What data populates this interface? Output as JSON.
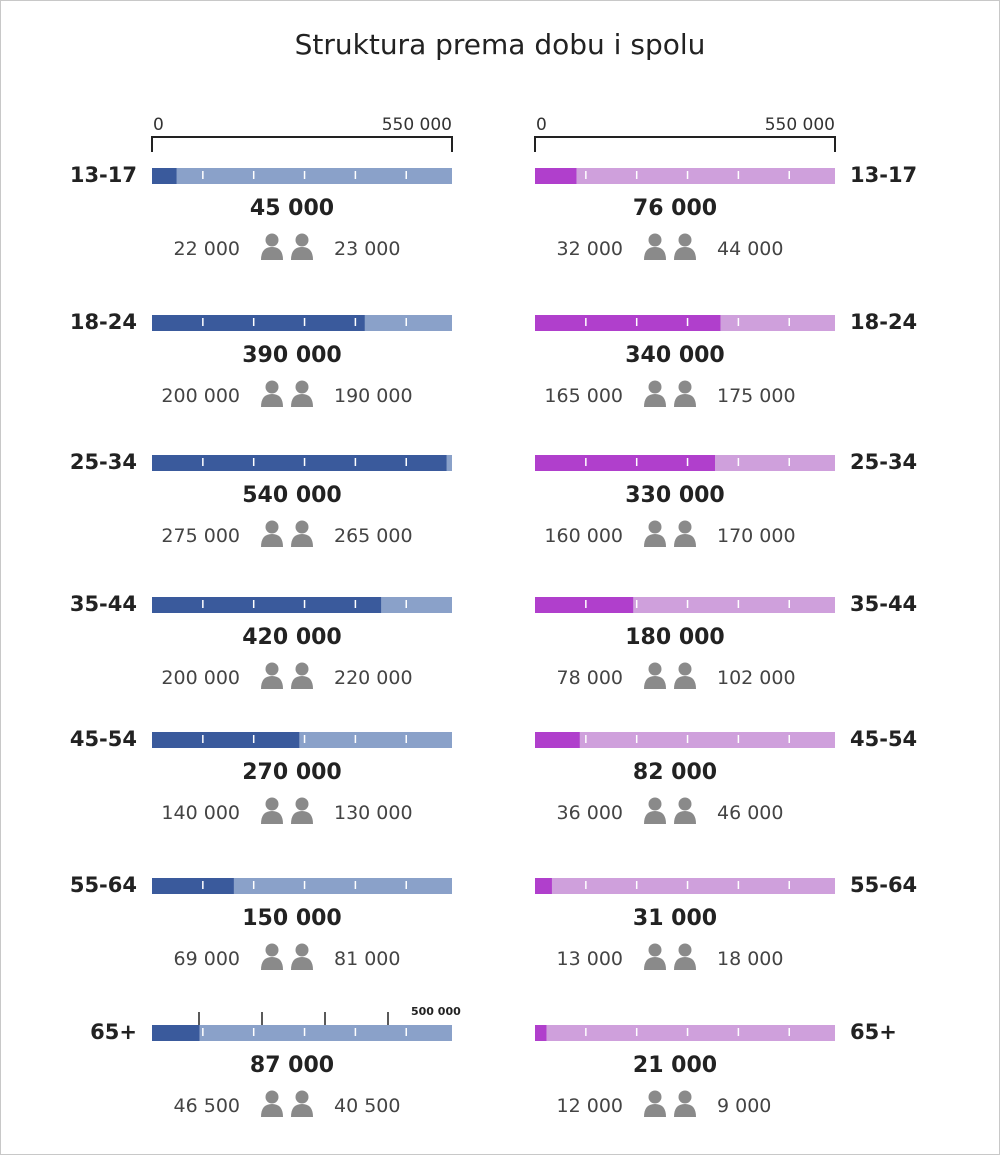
{
  "chart_data": {
    "type": "bar",
    "title": "Struktura prema dobu i spolu",
    "axis": {
      "min_label": "0",
      "max_label": "550 000",
      "max": 550000
    },
    "colors": {
      "left_fill": "#3a5a9c",
      "left_track": "#8aa1c9",
      "right_fill": "#b03fcc",
      "right_track": "#cfa0dc",
      "icon": "#8a8a8a"
    },
    "icons": {
      "gender": "person-pair-icon"
    },
    "left": [
      {
        "age": "13-17",
        "total": 45000,
        "total_label": "45 000",
        "female_label": "22 000",
        "male_label": "23 000"
      },
      {
        "age": "18-24",
        "total": 390000,
        "total_label": "390 000",
        "female_label": "200 000",
        "male_label": "190 000"
      },
      {
        "age": "25-34",
        "total": 540000,
        "total_label": "540 000",
        "female_label": "275 000",
        "male_label": "265 000"
      },
      {
        "age": "35-44",
        "total": 420000,
        "total_label": "420 000",
        "female_label": "200 000",
        "male_label": "220 000"
      },
      {
        "age": "45-54",
        "total": 270000,
        "total_label": "270 000",
        "female_label": "140 000",
        "male_label": "130 000"
      },
      {
        "age": "55-64",
        "total": 150000,
        "total_label": "150 000",
        "female_label": "69 000",
        "male_label": "81 000"
      },
      {
        "age": "65+",
        "total": 87000,
        "total_label": "87 000",
        "female_label": "46 500",
        "male_label": "40 500"
      }
    ],
    "right": [
      {
        "age": "13-17",
        "total": 76000,
        "total_label": "76 000",
        "female_label": "32 000",
        "male_label": "44 000"
      },
      {
        "age": "18-24",
        "total": 340000,
        "total_label": "340 000",
        "female_label": "165 000",
        "male_label": "175 000"
      },
      {
        "age": "25-34",
        "total": 330000,
        "total_label": "330 000",
        "female_label": "160 000",
        "male_label": "170 000"
      },
      {
        "age": "35-44",
        "total": 180000,
        "total_label": "180 000",
        "female_label": "78 000",
        "male_label": "102 000"
      },
      {
        "age": "45-54",
        "total": 82000,
        "total_label": "82 000",
        "female_label": "36 000",
        "male_label": "46 000"
      },
      {
        "age": "55-64",
        "total": 31000,
        "total_label": "31 000",
        "female_label": "13 000",
        "male_label": "18 000"
      },
      {
        "age": "65+",
        "total": 21000,
        "total_label": "21 000",
        "female_label": "12 000",
        "male_label": "9 000"
      }
    ],
    "stray_axis": {
      "label": "500 000",
      "value": 500000
    }
  }
}
